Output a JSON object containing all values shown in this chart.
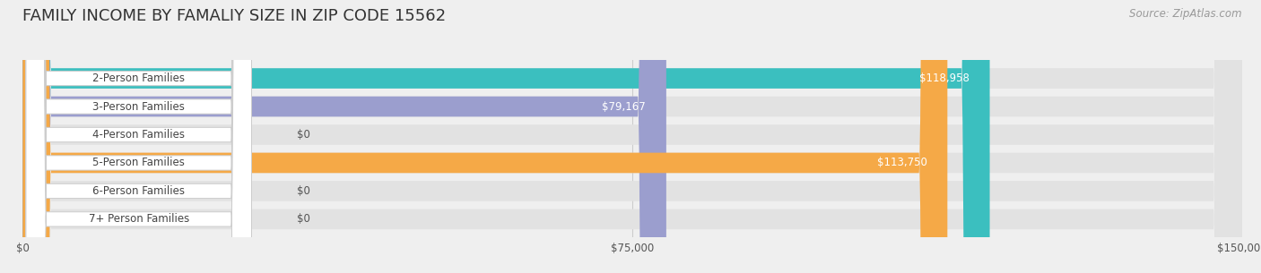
{
  "title": "FAMILY INCOME BY FAMALIY SIZE IN ZIP CODE 15562",
  "source": "Source: ZipAtlas.com",
  "categories": [
    "2-Person Families",
    "3-Person Families",
    "4-Person Families",
    "5-Person Families",
    "6-Person Families",
    "7+ Person Families"
  ],
  "values": [
    118958,
    79167,
    0,
    113750,
    0,
    0
  ],
  "bar_colors": [
    "#3bbfbf",
    "#9b9ece",
    "#f4a0b0",
    "#f5a947",
    "#f4a0b0",
    "#a8cce8"
  ],
  "xlim": [
    0,
    150000
  ],
  "xticks": [
    0,
    75000,
    150000
  ],
  "xtick_labels": [
    "$0",
    "$75,000",
    "$150,000"
  ],
  "background_color": "#efefef",
  "bar_bg_color": "#e2e2e2",
  "title_fontsize": 13,
  "label_fontsize": 8.5,
  "value_fontsize": 8.5,
  "source_fontsize": 8.5
}
